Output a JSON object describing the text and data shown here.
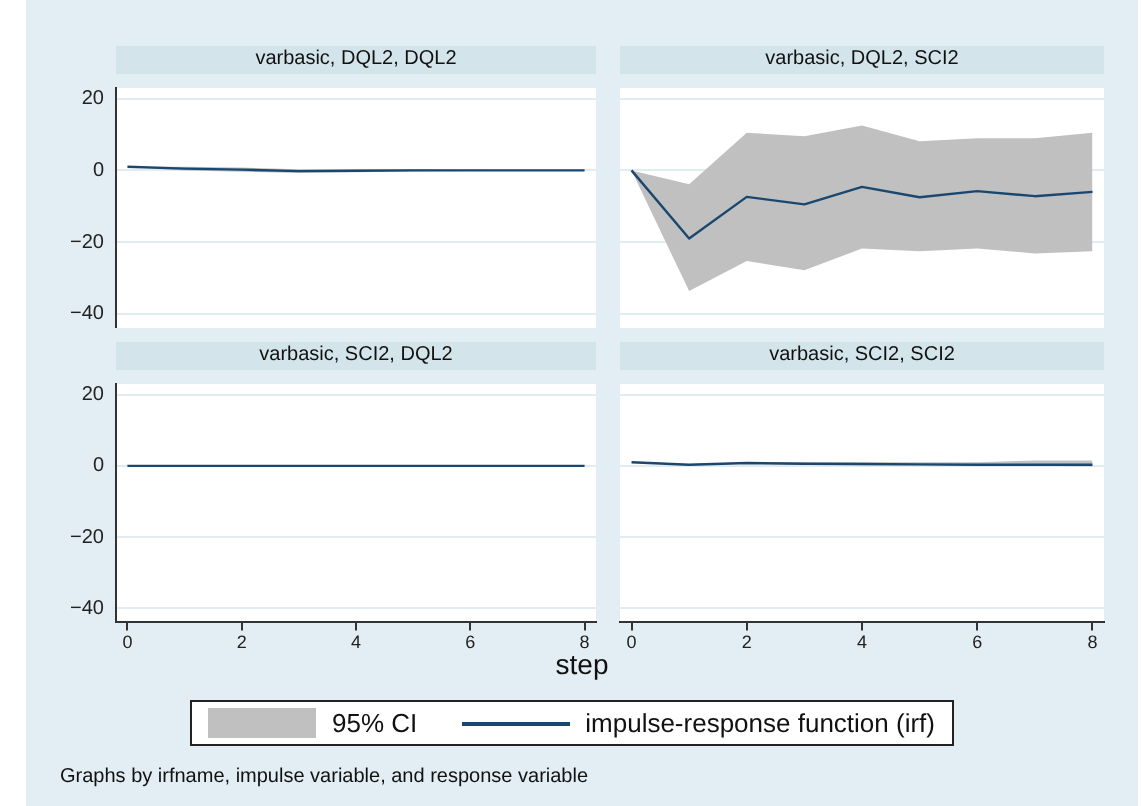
{
  "chart_data": [
    {
      "type": "line",
      "title": "varbasic, DQL2, DQL2",
      "x": [
        0,
        1,
        2,
        3,
        4,
        5,
        6,
        7,
        8
      ],
      "xlim": [
        -0.2,
        8.2
      ],
      "ylim": [
        -44,
        23
      ],
      "yticks": [
        {
          "value": -40,
          "label": "−40"
        },
        {
          "value": -20,
          "label": "−20"
        },
        {
          "value": 0,
          "label": "0"
        },
        {
          "value": 20,
          "label": "20"
        }
      ],
      "grid": "y",
      "tick_labels": "y",
      "marker": "none",
      "series": [
        {
          "color": "#1a476f",
          "values": [
            1,
            0.5,
            0.2,
            -0.2,
            -0.1,
            0,
            0,
            0,
            0
          ],
          "lower": [
            1,
            0,
            -0.4,
            -0.7,
            -0.5,
            -0.3,
            -0.2,
            -0.1,
            -0.1
          ],
          "upper": [
            1,
            1,
            0.8,
            0.3,
            0.3,
            0.3,
            0.2,
            0.1,
            0.1
          ]
        }
      ]
    },
    {
      "type": "line",
      "title": "varbasic, DQL2, SCI2",
      "x": [
        0,
        1,
        2,
        3,
        4,
        5,
        6,
        7,
        8
      ],
      "xlim": [
        -0.2,
        8.2
      ],
      "ylim": [
        -44,
        23
      ],
      "yticks": [
        {
          "value": -40,
          "label": null
        },
        {
          "value": -20,
          "label": null
        },
        {
          "value": 0,
          "label": null
        },
        {
          "value": 20,
          "label": null
        }
      ],
      "grid": "y",
      "tick_labels": false,
      "marker": "none",
      "series": [
        {
          "color": "#1a476f",
          "values": [
            0,
            -19,
            -7.4,
            -9.5,
            -4.6,
            -7.5,
            -5.8,
            -7.2,
            -6
          ],
          "lower": [
            0,
            -33.7,
            -25.3,
            -27.9,
            -21.8,
            -22.6,
            -21.8,
            -23.2,
            -22.6
          ],
          "upper": [
            0,
            -3.9,
            10.5,
            9.5,
            12.5,
            8.1,
            9,
            9,
            10.5
          ]
        }
      ]
    },
    {
      "type": "line",
      "title": "varbasic, SCI2, DQL2",
      "x": [
        0,
        1,
        2,
        3,
        4,
        5,
        6,
        7,
        8
      ],
      "xlim": [
        -0.2,
        8.2
      ],
      "xticks": [
        0,
        2,
        4,
        6,
        8
      ],
      "ylim": [
        -44,
        23
      ],
      "yticks": [
        {
          "value": -40,
          "label": "−40"
        },
        {
          "value": -20,
          "label": "−20"
        },
        {
          "value": 0,
          "label": "0"
        },
        {
          "value": 20,
          "label": "20"
        }
      ],
      "grid": "y",
      "marker": "none",
      "series": [
        {
          "color": "#1a476f",
          "values": [
            0,
            0,
            0,
            0,
            0,
            0,
            0,
            0,
            0
          ]
        }
      ]
    },
    {
      "type": "line",
      "title": "varbasic, SCI2, SCI2",
      "x": [
        0,
        1,
        2,
        3,
        4,
        5,
        6,
        7,
        8
      ],
      "xlim": [
        -0.2,
        8.2
      ],
      "xticks": [
        0,
        2,
        4,
        6,
        8
      ],
      "ylim": [
        -44,
        23
      ],
      "yticks": [
        {
          "value": -40,
          "label": null
        },
        {
          "value": -20,
          "label": null
        },
        {
          "value": 0,
          "label": null
        },
        {
          "value": 20,
          "label": null
        }
      ],
      "grid": "y",
      "tick_labels": "x",
      "marker": "none",
      "xlabel": "step",
      "legend": "bottom",
      "annotations": [
        "95% CI",
        "Graphs by irfname, impulse variable, and response variable"
      ],
      "series": [
        {
          "name": "impulse-response function (irf)",
          "color": "#1a476f",
          "values": [
            1,
            0.3,
            0.8,
            0.6,
            0.5,
            0.4,
            0.3,
            0.3,
            0.3
          ],
          "lower": [
            1,
            0.1,
            0.6,
            0.3,
            0.2,
            0.1,
            0,
            0,
            -0.2
          ],
          "upper": [
            1,
            0.5,
            1,
            1,
            1,
            1,
            1,
            1.5,
            1.5
          ]
        }
      ]
    }
  ]
}
